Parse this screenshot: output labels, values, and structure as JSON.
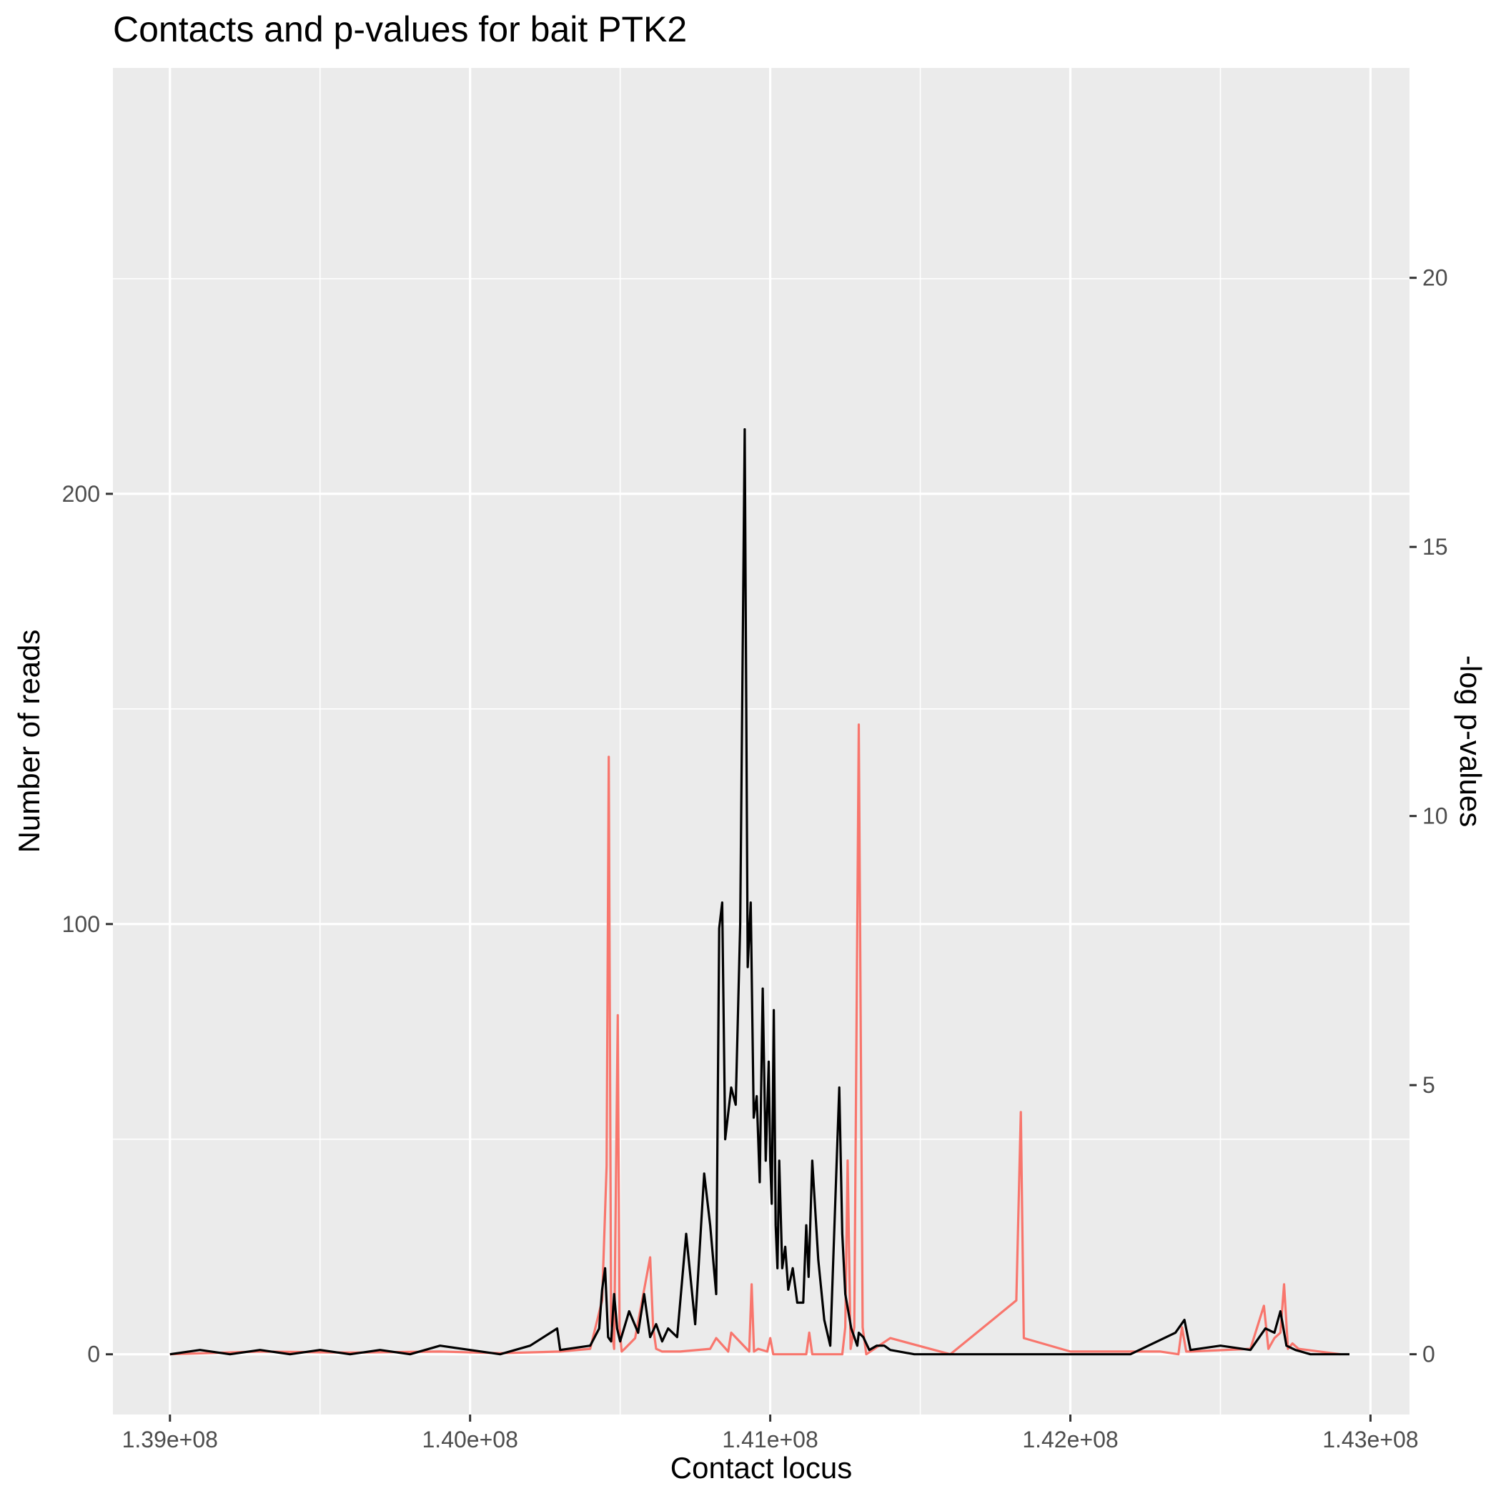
{
  "chart_data": {
    "type": "line",
    "title": "Contacts and p-values for bait PTK2",
    "xlabel": "Contact locus",
    "ylabel": "Number of reads",
    "y2label": "-log p-values",
    "xlim": [
      138810000,
      143130000
    ],
    "ylim": [
      -14,
      299
    ],
    "y2lim": [
      -1.12,
      23.9
    ],
    "grid": true,
    "background": "#ebebeb",
    "x_ticks": [
      {
        "value": 139000000,
        "label": "1.39e+08"
      },
      {
        "value": 140000000,
        "label": "1.40e+08"
      },
      {
        "value": 141000000,
        "label": "1.41e+08"
      },
      {
        "value": 142000000,
        "label": "1.42e+08"
      },
      {
        "value": 143000000,
        "label": "1.43e+08"
      }
    ],
    "y_ticks": [
      {
        "value": 0,
        "label": "0"
      },
      {
        "value": 100,
        "label": "100"
      },
      {
        "value": 200,
        "label": "200"
      }
    ],
    "y2_ticks": [
      {
        "value": 0,
        "label": "0"
      },
      {
        "value": 5,
        "label": "5"
      },
      {
        "value": 10,
        "label": "10"
      },
      {
        "value": 15,
        "label": "15"
      },
      {
        "value": 20,
        "label": "20"
      }
    ],
    "series": [
      {
        "name": "",
        "axis": "right",
        "color": "#f8766d",
        "x": [
          139000000,
          139300000,
          139600000,
          139900000,
          140100000,
          140300000,
          140400000,
          140440000,
          140455000,
          140462000,
          140470000,
          140480000,
          140492000,
          140498000,
          140505000,
          140515000,
          140550000,
          140600000,
          140610000,
          140620000,
          140640000,
          140700000,
          140800000,
          140820000,
          140860000,
          140870000,
          140930000,
          140938000,
          140946000,
          140960000,
          140990000,
          141000000,
          141010000,
          141030000,
          141120000,
          141130000,
          141140000,
          141240000,
          141250000,
          141258000,
          141268000,
          141280000,
          141295000,
          141308000,
          141320000,
          141400000,
          141600000,
          141820000,
          141835000,
          141845000,
          142000000,
          142300000,
          142360000,
          142372000,
          142386000,
          142400000,
          142600000,
          142645000,
          142660000,
          142680000,
          142700000,
          142712000,
          142725000,
          142740000,
          142760000,
          142900000
        ],
        "y": [
          0.0,
          0.05,
          0.03,
          0.05,
          0.02,
          0.05,
          0.1,
          1.0,
          3.5,
          11.1,
          0.6,
          0.1,
          6.3,
          0.5,
          0.05,
          0.1,
          0.3,
          1.8,
          0.5,
          0.1,
          0.05,
          0.05,
          0.1,
          0.3,
          0.05,
          0.4,
          0.05,
          1.3,
          0.05,
          0.1,
          0.05,
          0.3,
          0.0,
          0.0,
          0.0,
          0.4,
          0.0,
          0.0,
          0.5,
          3.6,
          0.1,
          0.5,
          11.7,
          0.5,
          0.0,
          0.3,
          0.0,
          1.0,
          4.5,
          0.3,
          0.05,
          0.05,
          0.0,
          0.5,
          0.05,
          0.05,
          0.1,
          0.9,
          0.1,
          0.3,
          0.4,
          1.3,
          0.1,
          0.2,
          0.1,
          0.0
        ]
      },
      {
        "name": "",
        "axis": "left",
        "color": "#000000",
        "x": [
          139000000,
          139100000,
          139200000,
          139300000,
          139400000,
          139500000,
          139600000,
          139700000,
          139800000,
          139900000,
          140000000,
          140100000,
          140200000,
          140290000,
          140300000,
          140400000,
          140430000,
          140440000,
          140450000,
          140460000,
          140470000,
          140480000,
          140490000,
          140500000,
          140530000,
          140560000,
          140580000,
          140600000,
          140620000,
          140640000,
          140660000,
          140690000,
          140720000,
          140750000,
          140780000,
          140800000,
          140820000,
          140830000,
          140840000,
          140850000,
          140870000,
          140885000,
          140900000,
          140915000,
          140925000,
          140935000,
          140945000,
          140955000,
          140965000,
          140975000,
          140985000,
          140995000,
          141000000,
          141005000,
          141012000,
          141018000,
          141024000,
          141030000,
          141040000,
          141050000,
          141060000,
          141075000,
          141090000,
          141110000,
          141120000,
          141128000,
          141140000,
          141160000,
          141180000,
          141200000,
          141230000,
          141240000,
          141250000,
          141270000,
          141290000,
          141295000,
          141310000,
          141330000,
          141355000,
          141380000,
          141400000,
          141480000,
          141600000,
          141800000,
          141900000,
          142000000,
          142200000,
          142350000,
          142380000,
          142400000,
          142500000,
          142600000,
          142650000,
          142680000,
          142700000,
          142720000,
          142750000,
          142800000,
          142930000
        ],
        "y": [
          0,
          1,
          0,
          1,
          0,
          1,
          0,
          1,
          0,
          2,
          1,
          0,
          2,
          6,
          1,
          2,
          6,
          15,
          20,
          4,
          3,
          14,
          6,
          3,
          10,
          5,
          14,
          4,
          7,
          3,
          6,
          4,
          28,
          7,
          42,
          30,
          14,
          99,
          105,
          50,
          62,
          58,
          100,
          215,
          90,
          105,
          55,
          60,
          40,
          85,
          45,
          68,
          45,
          35,
          80,
          30,
          20,
          45,
          20,
          25,
          15,
          20,
          12,
          12,
          30,
          18,
          45,
          22,
          8,
          2,
          62,
          28,
          14,
          6,
          2,
          5,
          4,
          1,
          2,
          2,
          1,
          0,
          0,
          0,
          0,
          0,
          0,
          5,
          8,
          1,
          2,
          1,
          6,
          5,
          10,
          2,
          1,
          0,
          0
        ]
      }
    ]
  }
}
